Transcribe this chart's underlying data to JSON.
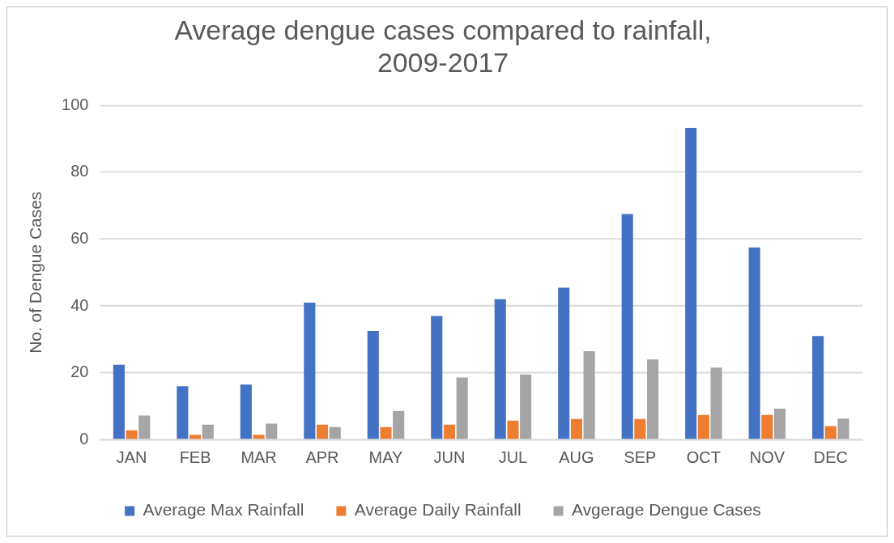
{
  "chart_data": {
    "type": "bar",
    "title": [
      "Average dengue cases compared to rainfall,",
      "2009-2017"
    ],
    "ylabel": "No. of Dengue Cases",
    "categories": [
      "JAN",
      "FEB",
      "MAR",
      "APR",
      "MAY",
      "JUN",
      "JUL",
      "AUG",
      "SEP",
      "OCT",
      "NOV",
      "DEC"
    ],
    "series": [
      {
        "name": "Average Max Rainfall",
        "color": "#4472c4",
        "values": [
          22.4,
          16,
          16.5,
          41,
          32.5,
          37,
          42,
          45.5,
          67.5,
          93.3,
          57.5,
          31
        ]
      },
      {
        "name": "Average Daily Rainfall",
        "color": "#ed7d31",
        "values": [
          2.8,
          1.5,
          1.5,
          4.5,
          3.8,
          4.5,
          5.7,
          6.2,
          6.2,
          7.4,
          7.4,
          4.1
        ]
      },
      {
        "name": "Avgerage Dengue Cases",
        "color": "#a5a5a5",
        "values": [
          7.2,
          4.5,
          4.8,
          3.8,
          8.6,
          18.6,
          19.5,
          26.5,
          24,
          21.6,
          9.3,
          6.3
        ]
      }
    ],
    "ylim": [
      0,
      100
    ],
    "yticks": [
      0,
      20,
      40,
      60,
      80,
      100
    ],
    "grid": "y",
    "legend": "bottom"
  }
}
